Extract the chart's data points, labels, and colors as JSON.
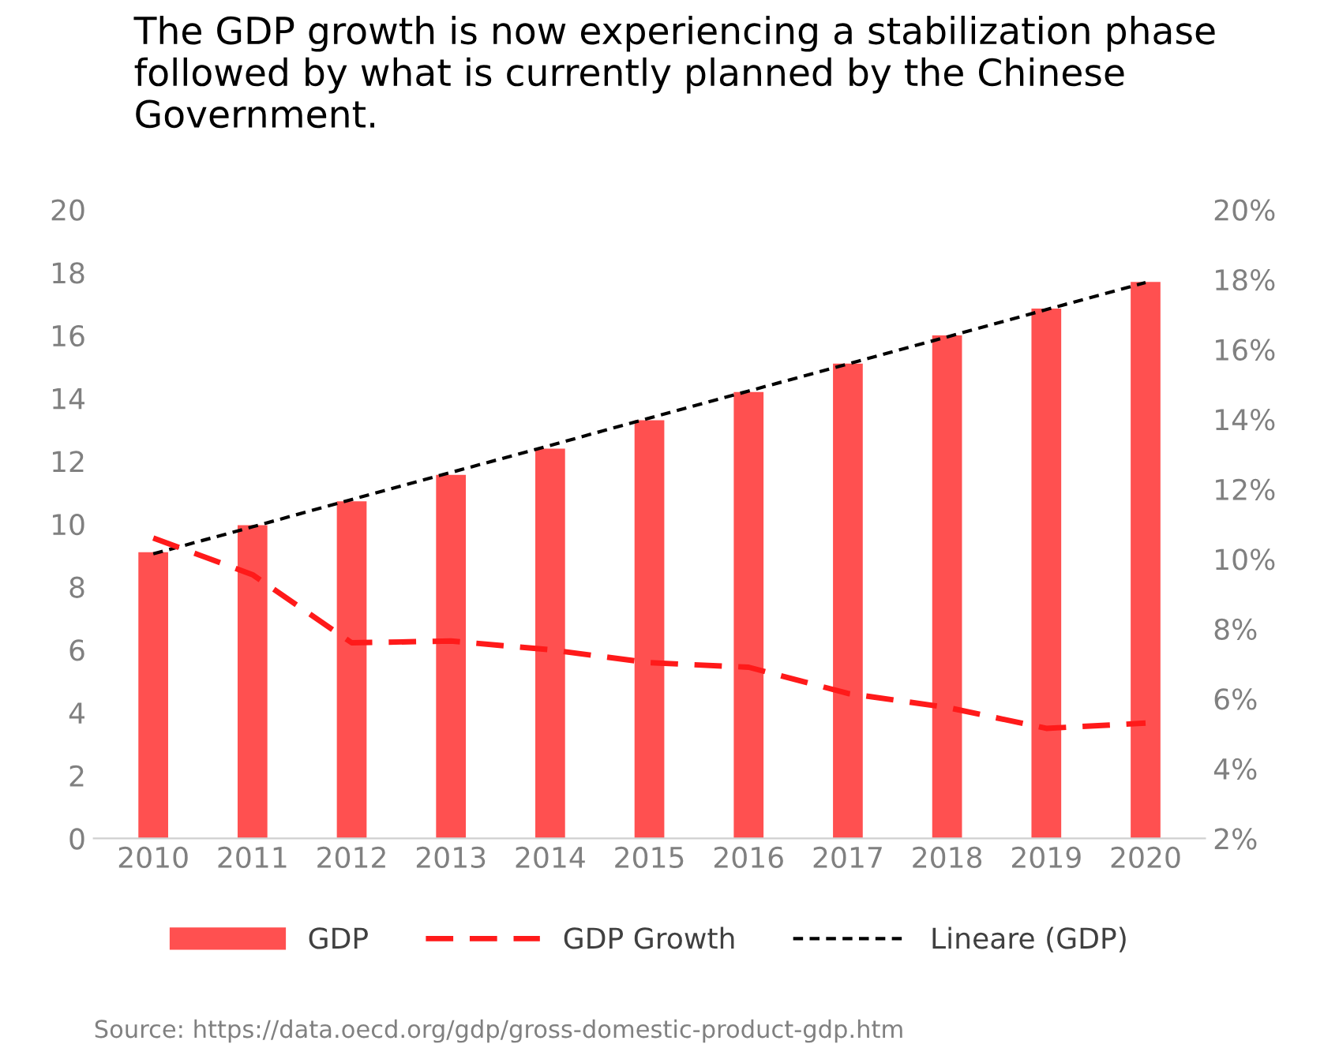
{
  "chart_data": {
    "type": "bar",
    "title": "The GDP growth is now experiencing a stabilization phase followed by what is currently planned by the Chinese Government.",
    "categories": [
      "2010",
      "2011",
      "2012",
      "2013",
      "2014",
      "2015",
      "2016",
      "2017",
      "2018",
      "2019",
      "2020"
    ],
    "series": [
      {
        "name": "GDP",
        "color": "#ff5050",
        "values": [
          9.1,
          9.96,
          10.72,
          11.56,
          12.4,
          13.3,
          14.2,
          15.1,
          16.0,
          16.85,
          17.7
        ]
      },
      {
        "name": "GDP Growth",
        "type": "line",
        "axis": "y2",
        "line_style": "dashed",
        "color": "#ff1a1a",
        "values": [
          10.6,
          9.55,
          7.6,
          7.65,
          7.4,
          7.03,
          6.9,
          6.15,
          5.75,
          5.15,
          5.3
        ]
      },
      {
        "name": "Lineare (GDP)",
        "type": "line",
        "line_style": "dotted",
        "color": "#000000",
        "values": [
          9.05,
          9.91,
          10.78,
          11.64,
          12.5,
          13.37,
          14.23,
          15.09,
          15.95,
          16.82,
          17.68
        ]
      }
    ],
    "ylim": [
      0,
      20
    ],
    "yticks": [
      0,
      2,
      4,
      6,
      8,
      10,
      12,
      14,
      16,
      18,
      20
    ],
    "y2lim": [
      2,
      20
    ],
    "y2ticks": [
      {
        "value": 2,
        "label": "2%"
      },
      {
        "value": 4,
        "label": "4%"
      },
      {
        "value": 6,
        "label": "6%"
      },
      {
        "value": 8,
        "label": "8%"
      },
      {
        "value": 10,
        "label": "10%"
      },
      {
        "value": 12,
        "label": "12%"
      },
      {
        "value": 14,
        "label": "14%"
      },
      {
        "value": 16,
        "label": "16%"
      },
      {
        "value": 18,
        "label": "18%"
      },
      {
        "value": 20,
        "label": "20%"
      }
    ],
    "legend": "bottom",
    "grid": false,
    "annotations": [
      "Source: https://data.oecd.org/gdp/gross-domestic-product-gdp.htm"
    ]
  }
}
